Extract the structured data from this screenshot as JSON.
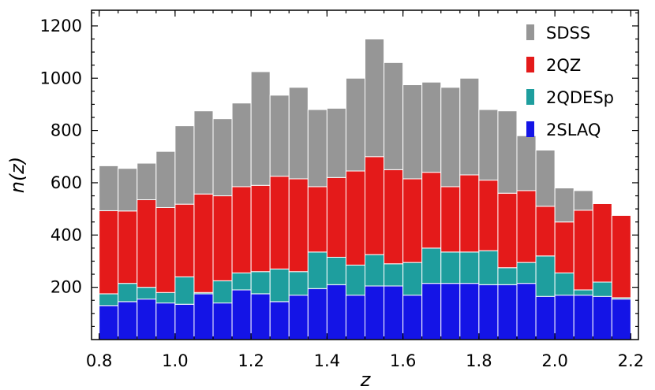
{
  "chart_data": {
    "type": "bar",
    "stacked": true,
    "xlabel": "z",
    "ylabel": "n(z)",
    "xlim": [
      0.78,
      2.22
    ],
    "ylim": [
      0,
      1260
    ],
    "bin_width": 0.05,
    "x": [
      0.825,
      0.875,
      0.925,
      0.975,
      1.025,
      1.075,
      1.125,
      1.175,
      1.225,
      1.275,
      1.325,
      1.375,
      1.425,
      1.475,
      1.525,
      1.575,
      1.625,
      1.675,
      1.725,
      1.775,
      1.825,
      1.875,
      1.925,
      1.975,
      2.025,
      2.075,
      2.125,
      2.175
    ],
    "xticks": [
      0.8,
      1.0,
      1.2,
      1.4,
      1.6,
      1.8,
      2.0,
      2.2
    ],
    "xtick_labels": [
      "0.8",
      "1.0",
      "1.2",
      "1.4",
      "1.6",
      "1.8",
      "2.0",
      "2.2"
    ],
    "yticks": [
      200,
      400,
      600,
      800,
      1000,
      1200
    ],
    "ytick_labels": [
      "200",
      "400",
      "600",
      "800",
      "1000",
      "1200"
    ],
    "legend_position": "top-right",
    "series": [
      {
        "name": "2SLAQ",
        "color": "#1414e6",
        "values": [
          130,
          145,
          155,
          140,
          135,
          175,
          140,
          190,
          175,
          145,
          170,
          195,
          210,
          170,
          205,
          205,
          170,
          215,
          215,
          215,
          210,
          210,
          215,
          165,
          170,
          170,
          165,
          155
        ]
      },
      {
        "name": "2QDESp",
        "color": "#1e9e9e",
        "values": [
          45,
          70,
          45,
          40,
          105,
          5,
          85,
          65,
          85,
          125,
          90,
          140,
          105,
          115,
          120,
          85,
          125,
          135,
          120,
          120,
          130,
          65,
          80,
          155,
          85,
          20,
          55,
          5
        ]
      },
      {
        "name": "2QZ",
        "color": "#e41a1a",
        "values": [
          318,
          277,
          335,
          325,
          278,
          377,
          325,
          330,
          330,
          355,
          355,
          250,
          305,
          360,
          375,
          360,
          320,
          290,
          250,
          295,
          270,
          285,
          275,
          190,
          195,
          305,
          300,
          315
        ]
      },
      {
        "name": "SDSS",
        "color": "#969696",
        "values": [
          172,
          163,
          140,
          215,
          300,
          318,
          295,
          320,
          435,
          310,
          350,
          295,
          265,
          355,
          450,
          410,
          360,
          345,
          380,
          370,
          270,
          315,
          210,
          215,
          130,
          75,
          0,
          0
        ]
      }
    ],
    "legend_order": [
      "SDSS",
      "2QZ",
      "2QDESp",
      "2SLAQ"
    ]
  }
}
